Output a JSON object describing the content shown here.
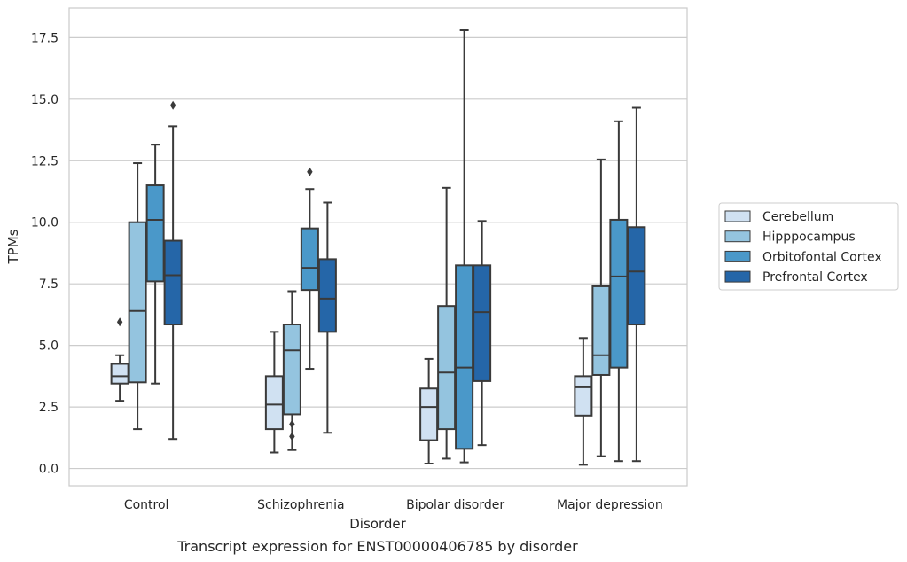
{
  "caption": "Transcript expression for ENST00000406785 by disorder",
  "chart_data": {
    "type": "box",
    "title": "",
    "xlabel": "Disorder",
    "ylabel": "TPMs",
    "ylim": [
      -0.7,
      18.7
    ],
    "yticks": [
      "0.0",
      "2.5",
      "5.0",
      "7.5",
      "10.0",
      "12.5",
      "15.0",
      "17.5"
    ],
    "ytick_values": [
      0,
      2.5,
      5,
      7.5,
      10,
      12.5,
      15,
      17.5
    ],
    "grid": "horizontal",
    "legend_position": "right",
    "categories": [
      "Control",
      "Schizophrenia",
      "Bipolar disorder",
      "Major depression"
    ],
    "series": [
      {
        "name": "Cerebellum",
        "color": "#d0e1f2",
        "boxes": [
          {
            "whislo": 2.75,
            "q1": 3.45,
            "med": 3.75,
            "q3": 4.25,
            "whishi": 4.6,
            "fliers": [
              5.95
            ]
          },
          {
            "whislo": 0.65,
            "q1": 1.6,
            "med": 2.6,
            "q3": 3.75,
            "whishi": 5.55,
            "fliers": []
          },
          {
            "whislo": 0.2,
            "q1": 1.15,
            "med": 2.5,
            "q3": 3.25,
            "whishi": 4.45,
            "fliers": []
          },
          {
            "whislo": 0.15,
            "q1": 2.15,
            "med": 3.3,
            "q3": 3.75,
            "whishi": 5.3,
            "fliers": []
          }
        ]
      },
      {
        "name": "Hipppocampus",
        "color": "#94c4df",
        "boxes": [
          {
            "whislo": 1.6,
            "q1": 3.5,
            "med": 6.4,
            "q3": 10.0,
            "whishi": 12.4,
            "fliers": []
          },
          {
            "whislo": 0.75,
            "q1": 2.2,
            "med": 4.8,
            "q3": 5.85,
            "whishi": 7.2,
            "fliers": [
              1.8,
              1.3
            ]
          },
          {
            "whislo": 0.4,
            "q1": 1.6,
            "med": 3.9,
            "q3": 6.6,
            "whishi": 11.4,
            "fliers": []
          },
          {
            "whislo": 0.5,
            "q1": 3.8,
            "med": 4.6,
            "q3": 7.4,
            "whishi": 12.55,
            "fliers": []
          }
        ]
      },
      {
        "name": "Orbitofontal Cortex",
        "color": "#4a98c9",
        "boxes": [
          {
            "whislo": 3.45,
            "q1": 7.6,
            "med": 10.1,
            "q3": 11.5,
            "whishi": 13.15,
            "fliers": []
          },
          {
            "whislo": 4.05,
            "q1": 7.25,
            "med": 8.15,
            "q3": 9.75,
            "whishi": 11.35,
            "fliers": [
              12.05
            ]
          },
          {
            "whislo": 0.25,
            "q1": 0.8,
            "med": 4.1,
            "q3": 8.25,
            "whishi": 17.8,
            "fliers": []
          },
          {
            "whislo": 0.3,
            "q1": 4.1,
            "med": 7.8,
            "q3": 10.1,
            "whishi": 14.1,
            "fliers": []
          }
        ]
      },
      {
        "name": "Prefrontal Cortex",
        "color": "#2566a8",
        "boxes": [
          {
            "whislo": 1.2,
            "q1": 5.85,
            "med": 7.85,
            "q3": 9.25,
            "whishi": 13.9,
            "fliers": [
              14.75
            ]
          },
          {
            "whislo": 1.45,
            "q1": 5.55,
            "med": 6.9,
            "q3": 8.5,
            "whishi": 10.8,
            "fliers": []
          },
          {
            "whislo": 0.95,
            "q1": 3.55,
            "med": 6.35,
            "q3": 8.25,
            "whishi": 10.05,
            "fliers": []
          },
          {
            "whislo": 0.3,
            "q1": 5.85,
            "med": 8.0,
            "q3": 9.8,
            "whishi": 14.65,
            "fliers": []
          }
        ]
      }
    ]
  }
}
